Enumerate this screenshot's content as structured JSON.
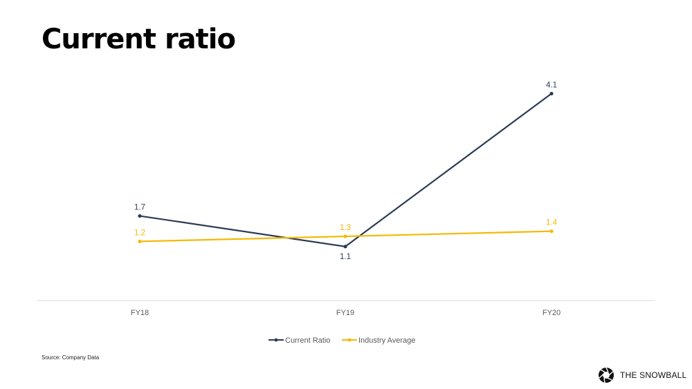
{
  "page": {
    "title": "Current ratio",
    "source": "Source: Company Data",
    "brand": "THE SNOWBALL"
  },
  "colors": {
    "current_ratio": "#2b3a55",
    "industry_average": "#f5b800",
    "axis": "#d9d9d9",
    "tick_text": "#595959"
  },
  "icons": {
    "brand": "aperture-logo-icon"
  },
  "chart_data": {
    "type": "line",
    "categories": [
      "FY18",
      "FY19",
      "FY20"
    ],
    "series": [
      {
        "name": "Current Ratio",
        "values": [
          1.7,
          1.1,
          4.1
        ],
        "color": "#2b3a55"
      },
      {
        "name": "Industry Average",
        "values": [
          1.2,
          1.3,
          1.4
        ],
        "color": "#f5b800"
      }
    ],
    "title": "Current ratio",
    "xlabel": "",
    "ylabel": "",
    "ylim": [
      0,
      4.5
    ],
    "grid": false,
    "legend": "bottom",
    "data_labels": true
  }
}
